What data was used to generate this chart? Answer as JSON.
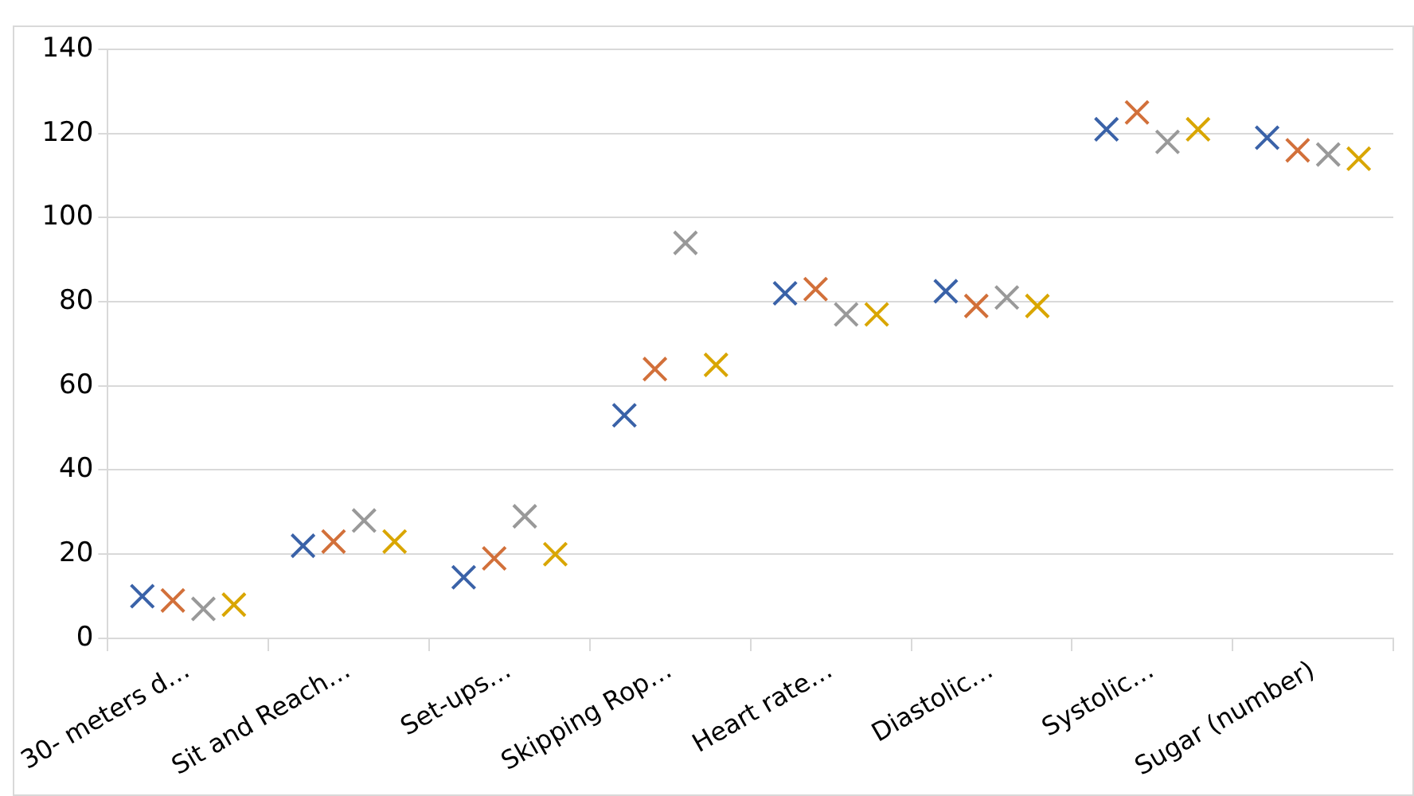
{
  "chart_data": {
    "type": "scatter",
    "marker": "cross",
    "grid": "y",
    "legend": false,
    "categories": [
      "30- meters d…",
      "Sit and Reach…",
      "Set-ups…",
      "Skipping Rop…",
      "Heart rate…",
      "Diastolic…",
      "Systolic…",
      "Sugar (number)"
    ],
    "ylim": [
      0,
      140
    ],
    "yticks": [
      0,
      20,
      40,
      60,
      80,
      100,
      120,
      140
    ],
    "series": [
      {
        "color": "#3a62a8",
        "values": [
          10,
          22,
          14.5,
          53,
          82,
          82.5,
          121,
          119
        ]
      },
      {
        "color": "#d2703a",
        "values": [
          9,
          23,
          19,
          64,
          83,
          79,
          125,
          116
        ]
      },
      {
        "color": "#999999",
        "values": [
          7,
          28,
          29,
          94,
          77,
          81,
          118,
          115
        ]
      },
      {
        "color": "#d9a600",
        "values": [
          8,
          23,
          20,
          65,
          77,
          79,
          121,
          114
        ]
      }
    ]
  }
}
